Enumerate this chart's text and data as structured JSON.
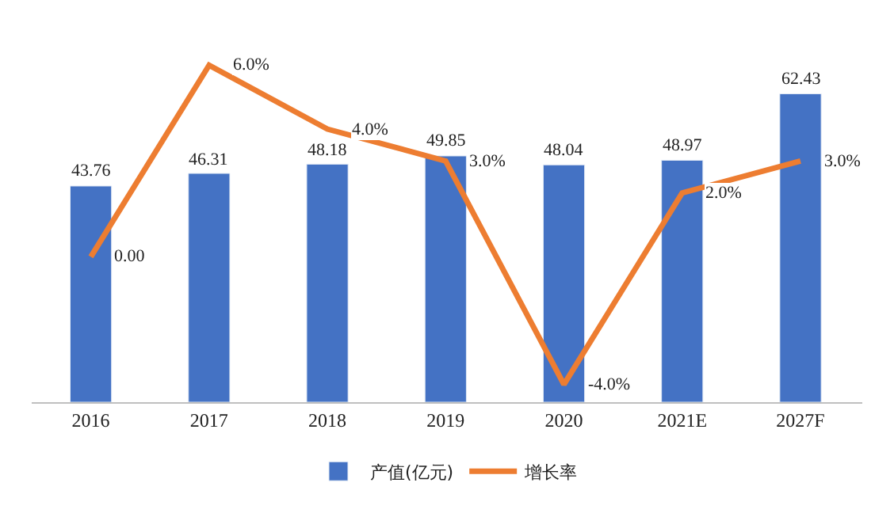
{
  "chart_data": {
    "type": "bar",
    "categories": [
      "2016",
      "2017",
      "2018",
      "2019",
      "2020",
      "2021E",
      "2027F"
    ],
    "series": [
      {
        "name": "产值(亿元)",
        "color": "#4472c4",
        "values": [
          43.76,
          46.31,
          48.18,
          49.85,
          48.04,
          48.97,
          62.43
        ],
        "value_labels": [
          "43.76",
          "46.31",
          "48.18",
          "49.85",
          "48.04",
          "48.97",
          "62.43"
        ]
      },
      {
        "name": "增长率",
        "type": "line",
        "axis": "y2",
        "color": "#ed7d31",
        "values": [
          0,
          6,
          4,
          3,
          -4,
          2,
          3
        ],
        "value_labels": [
          "0.00",
          "6.0%",
          "4.0%",
          "3.0%",
          "-4.0%",
          "2.0%",
          "3.0%"
        ]
      }
    ],
    "tick_labels": "x",
    "legend": "bottom",
    "marker": "none",
    "line_style": "solid"
  }
}
